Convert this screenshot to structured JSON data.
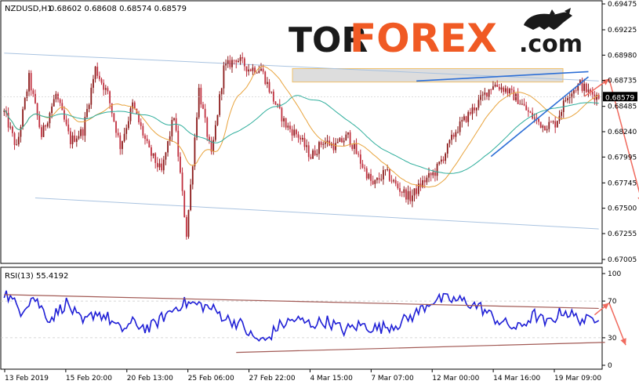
{
  "main_panel": {
    "symbol_timeframe": "NZDUSD,H1",
    "ohlc": "0.68602 0.68608 0.68574 0.68579",
    "y_ticks": [
      "0.69475",
      "0.69225",
      "0.68980",
      "0.68735",
      "0.68485",
      "0.68240",
      "0.67995",
      "0.67745",
      "0.67500",
      "0.67255",
      "0.67005"
    ],
    "current_price": "0.68579"
  },
  "watermark": {
    "text_part1": "TOR",
    "text_part2": "FOREX",
    "text_part3": ".com",
    "mascot": "bull-bear-logo"
  },
  "rsi_panel": {
    "label": "RSI(13) 55.4192",
    "y_ticks": [
      "100",
      "70",
      "30",
      "0"
    ]
  },
  "x_ticks": [
    "13 Feb 2019",
    "15 Feb 20:00",
    "20 Feb 13:00",
    "25 Feb 06:00",
    "27 Feb 22:00",
    "4 Mar 15:00",
    "7 Mar 07:00",
    "12 Mar 00:00",
    "14 Mar 16:00",
    "19 Mar 09:00"
  ],
  "colors": {
    "bull_candle": "#8b1a1a",
    "bear_candle": "#c0303f",
    "ma_fast": "#e8a33c",
    "ma_slow": "#2fae9c",
    "rsi_line": "#1f1fd6",
    "channel_line": "#a9c3e0",
    "trend_line": "#2d6fd6",
    "forecast_arrow": "#f06a5e",
    "rsi_channel": "#a25a55",
    "resistance_zone": "#d9d9d9",
    "logo_dark": "#1a1a1a",
    "logo_accent": "#f05a24"
  },
  "chart_data": [
    {
      "type": "candlestick",
      "title": "NZDUSD,H1",
      "x": [
        "13 Feb 2019",
        "15 Feb 20:00",
        "20 Feb 13:00",
        "25 Feb 06:00",
        "27 Feb 22:00",
        "4 Mar 15:00",
        "7 Mar 07:00",
        "12 Mar 00:00",
        "14 Mar 16:00",
        "19 Mar 09:00"
      ],
      "ylim": [
        0.67005,
        0.69475
      ],
      "price_anchors": [
        [
          0,
          0.6843
        ],
        [
          6,
          0.6808
        ],
        [
          12,
          0.6876
        ],
        [
          18,
          0.682
        ],
        [
          25,
          0.686
        ],
        [
          32,
          0.6815
        ],
        [
          38,
          0.6825
        ],
        [
          44,
          0.6885
        ],
        [
          50,
          0.686
        ],
        [
          56,
          0.681
        ],
        [
          62,
          0.685
        ],
        [
          70,
          0.6805
        ],
        [
          76,
          0.6785
        ],
        [
          82,
          0.684
        ],
        [
          88,
          0.6725
        ],
        [
          94,
          0.6865
        ],
        [
          100,
          0.68
        ],
        [
          106,
          0.6885
        ],
        [
          112,
          0.6895
        ],
        [
          118,
          0.6885
        ],
        [
          124,
          0.6885
        ],
        [
          130,
          0.6855
        ],
        [
          136,
          0.683
        ],
        [
          142,
          0.682
        ],
        [
          148,
          0.68
        ],
        [
          154,
          0.6815
        ],
        [
          160,
          0.681
        ],
        [
          166,
          0.682
        ],
        [
          172,
          0.6795
        ],
        [
          178,
          0.6772
        ],
        [
          184,
          0.6785
        ],
        [
          190,
          0.677
        ],
        [
          196,
          0.676
        ],
        [
          202,
          0.6775
        ],
        [
          208,
          0.6785
        ],
        [
          212,
          0.68
        ],
        [
          218,
          0.6825
        ],
        [
          224,
          0.684
        ],
        [
          230,
          0.6855
        ],
        [
          236,
          0.687
        ],
        [
          242,
          0.6865
        ],
        [
          248,
          0.6855
        ],
        [
          254,
          0.684
        ],
        [
          260,
          0.683
        ],
        [
          266,
          0.6832
        ],
        [
          272,
          0.686
        ],
        [
          278,
          0.687
        ],
        [
          282,
          0.6862
        ],
        [
          287,
          0.6858
        ]
      ],
      "series": [
        {
          "name": "",
          "kind": "moving-average-fast"
        },
        {
          "name": "",
          "kind": "moving-average-slow"
        }
      ],
      "annotations": {
        "resistance_zone": [
          0.6872,
          0.6885
        ],
        "upper_channel": [
          [
            0,
            0.69
          ],
          [
            287,
            0.6873
          ]
        ],
        "lower_channel": [
          [
            15,
            0.676
          ],
          [
            287,
            0.673
          ]
        ],
        "rising_trend_line": [
          [
            235,
            0.68
          ],
          [
            282,
            0.6877
          ]
        ],
        "resistance_trend_line": [
          [
            199,
            0.6873
          ],
          [
            282,
            0.6882
          ]
        ],
        "forecast_path": [
          [
            280,
            0.6858
          ],
          [
            292,
            0.6875
          ],
          [
            308,
            0.6755
          ]
        ]
      },
      "current_price": 0.68579,
      "grid": false
    },
    {
      "type": "line",
      "title": "RSI(13) 55.4192",
      "ylim": [
        0,
        100
      ],
      "y_ticks": [
        100,
        70,
        30,
        0
      ],
      "value": 55.4192,
      "rsi_anchors": [
        [
          0,
          80
        ],
        [
          8,
          60
        ],
        [
          14,
          75
        ],
        [
          22,
          50
        ],
        [
          30,
          68
        ],
        [
          38,
          45
        ],
        [
          44,
          58
        ],
        [
          50,
          52
        ],
        [
          56,
          38
        ],
        [
          62,
          46
        ],
        [
          70,
          40
        ],
        [
          78,
          55
        ],
        [
          86,
          68
        ],
        [
          94,
          66
        ],
        [
          100,
          62
        ],
        [
          108,
          50
        ],
        [
          114,
          45
        ],
        [
          120,
          30
        ],
        [
          126,
          26
        ],
        [
          132,
          42
        ],
        [
          140,
          50
        ],
        [
          148,
          45
        ],
        [
          156,
          48
        ],
        [
          164,
          38
        ],
        [
          172,
          44
        ],
        [
          180,
          40
        ],
        [
          190,
          45
        ],
        [
          198,
          55
        ],
        [
          206,
          70
        ],
        [
          214,
          72
        ],
        [
          222,
          70
        ],
        [
          230,
          63
        ],
        [
          236,
          52
        ],
        [
          242,
          45
        ],
        [
          248,
          40
        ],
        [
          256,
          55
        ],
        [
          262,
          45
        ],
        [
          270,
          60
        ],
        [
          276,
          52
        ],
        [
          282,
          48
        ],
        [
          287,
          55
        ]
      ],
      "annotations": {
        "upper_trend_line": [
          [
            0,
            77
          ],
          [
            287,
            62
          ]
        ],
        "lower_trend_line": [
          [
            112,
            14
          ],
          [
            290,
            25
          ]
        ],
        "forecast_path": [
          [
            285,
            55
          ],
          [
            292,
            68
          ],
          [
            300,
            22
          ]
        ]
      }
    }
  ]
}
